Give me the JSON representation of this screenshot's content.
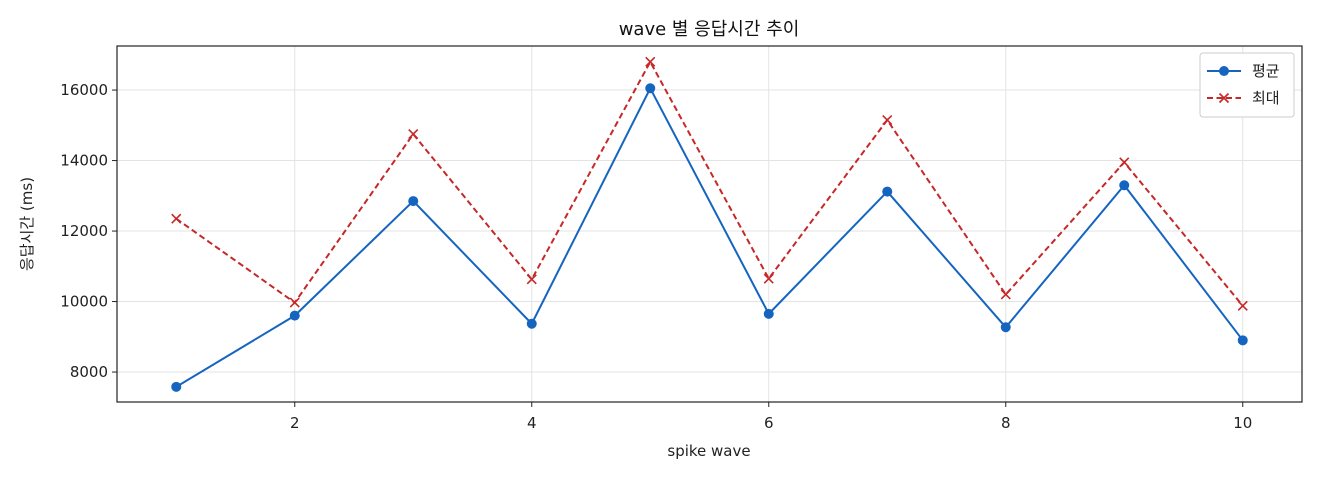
{
  "chart_data": {
    "type": "line",
    "title": "wave 별 응답시간 추이",
    "xlabel": "spike wave",
    "ylabel": "응답시간 (ms)",
    "x": [
      1,
      2,
      3,
      4,
      5,
      6,
      7,
      8,
      9,
      10
    ],
    "xlim": [
      0.5,
      10.5
    ],
    "ylim": [
      7150,
      17250
    ],
    "xticks": [
      2,
      4,
      6,
      8,
      10
    ],
    "yticks": [
      8000,
      10000,
      12000,
      14000,
      16000
    ],
    "grid": true,
    "legend_position": "top-right",
    "series": [
      {
        "name": "평균",
        "color": "#1565c0",
        "line_style": "solid",
        "marker": "circle",
        "values": [
          7580,
          9600,
          12850,
          9370,
          16050,
          9650,
          13120,
          9270,
          13300,
          8900
        ]
      },
      {
        "name": "최대",
        "color": "#c62828",
        "line_style": "dashed",
        "marker": "x",
        "values": [
          12350,
          9970,
          14750,
          10630,
          16800,
          10650,
          15150,
          10200,
          13950,
          9880
        ]
      }
    ]
  }
}
